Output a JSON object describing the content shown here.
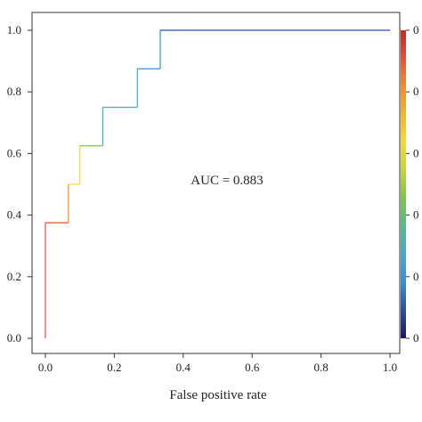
{
  "chart_data": {
    "type": "line",
    "title": "",
    "xlabel": "False positive rate",
    "ylabel": "",
    "xlim": [
      0,
      1
    ],
    "ylim": [
      0,
      1
    ],
    "x_ticks": [
      "0.0",
      "0.2",
      "0.4",
      "0.6",
      "0.8",
      "1.0"
    ],
    "y_ticks": [
      "0.0",
      "0.2",
      "0.4",
      "0.6",
      "0.8",
      "1.0"
    ],
    "grid": false,
    "annotation": "AUC = 0.883",
    "series": [
      {
        "x": [
          0,
          0,
          0.0667,
          0.0667,
          0.1,
          0.1,
          0.1667,
          0.1667,
          0.2667,
          0.2667,
          0.3333,
          0.3333,
          1.0
        ],
        "y": [
          0,
          0.375,
          0.375,
          0.5,
          0.5,
          0.625,
          0.625,
          0.75,
          0.75,
          0.875,
          0.875,
          1.0,
          1.0
        ],
        "colors": [
          "#e0533a",
          "#f08d30",
          "#f4d93a",
          "#7ec44f",
          "#4aa8c9",
          "#4aa8c9",
          "#3b8fd0",
          "#2f4e9b"
        ]
      }
    ],
    "colorbar": {
      "colors": [
        "#1a1a5e",
        "#2f4e9b",
        "#3b8fd0",
        "#4aa8c9",
        "#58b98a",
        "#7ec44f",
        "#c2d53c",
        "#f4d93a",
        "#f0b52d",
        "#f08d30",
        "#e0533a",
        "#c62828"
      ],
      "tick_labels": [
        "0",
        "0",
        "0",
        "0",
        "0",
        "0"
      ]
    }
  }
}
